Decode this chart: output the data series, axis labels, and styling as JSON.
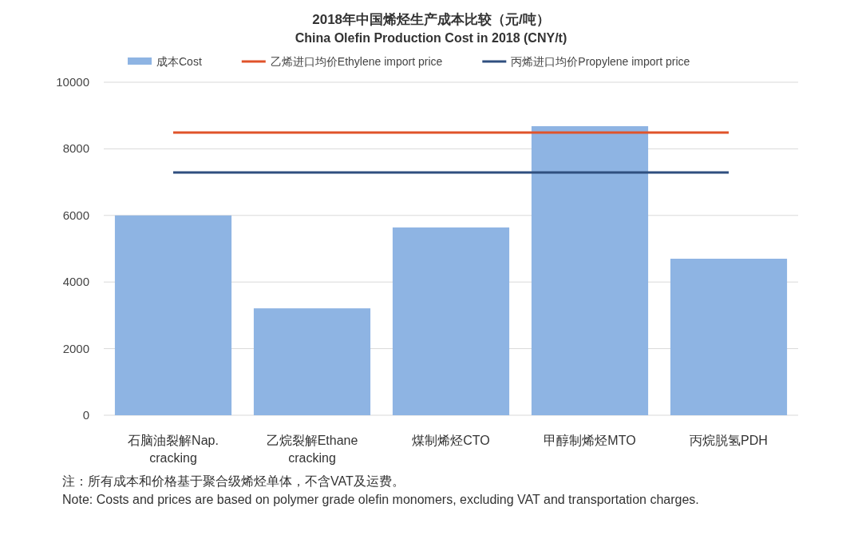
{
  "chart_data": {
    "type": "bar",
    "title": "2018年中国烯烃生产成本比较（元/吨）",
    "subtitle": "China Olefin Production Cost in 2018 (CNY/t)",
    "categories": [
      "石脑油裂解Nap. cracking",
      "乙烷裂解Ethane cracking",
      "煤制烯烃CTO",
      "甲醇制烯烃MTO",
      "丙烷脱氢PDH"
    ],
    "series": [
      {
        "name": "成本Cost",
        "color": "#8eb4e3",
        "values": [
          6000,
          3210,
          5640,
          8680,
          4700
        ]
      },
      {
        "name": "乙烯进口均价Ethylene import price",
        "type": "line",
        "color": "#e0532a",
        "values": [
          8490,
          8490,
          8490,
          8490,
          8490
        ]
      },
      {
        "name": "丙烯进口均价Propylene import price",
        "type": "line",
        "color": "#2f4f7f",
        "values": [
          7290,
          7290,
          7290,
          7290,
          7290
        ]
      }
    ],
    "ylim": [
      0,
      10000
    ],
    "yticks": [
      0,
      2000,
      4000,
      6000,
      8000,
      10000
    ],
    "grid": "y",
    "legend": "top",
    "annotations": [
      "注：所有成本和价格基于聚合级烯烃单体，不含VAT及运费。",
      "Note:  Costs and prices are based on polymer grade olefin monomers, excluding VAT and transportation charges."
    ]
  }
}
